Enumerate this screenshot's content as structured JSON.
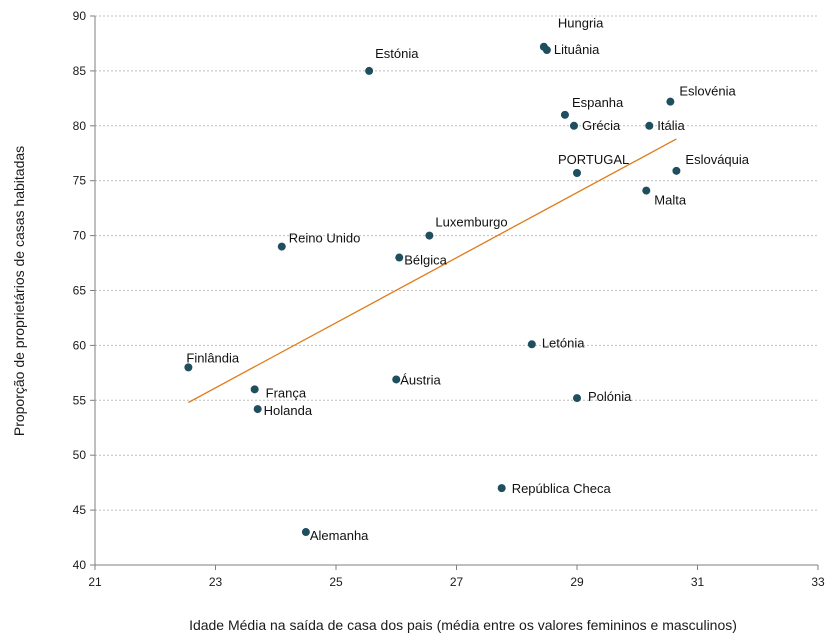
{
  "chart_data": {
    "type": "scatter",
    "xlabel": "Idade Média na saída de casa dos pais (média entre os valores femininos e masculinos)",
    "ylabel": "Proporção de proprietários de casas habitadas",
    "xlim": [
      21,
      33
    ],
    "ylim": [
      40,
      90
    ],
    "xticks": [
      "21",
      "23",
      "25",
      "27",
      "29",
      "31",
      "33"
    ],
    "yticks": [
      "40",
      "45",
      "50",
      "55",
      "60",
      "65",
      "70",
      "75",
      "80",
      "85",
      "90"
    ],
    "grid": {
      "horizontal": true,
      "vertical": false
    },
    "point_color": "#1f4e5f",
    "trendline_color": "#e07b1a",
    "trendline": {
      "x1": 22.55,
      "y1": 54.8,
      "x2": 30.65,
      "y2": 78.8
    },
    "points": [
      {
        "label": "Hungria",
        "x": 28.45,
        "y": 87.2
      },
      {
        "label": "Lituânia",
        "x": 28.5,
        "y": 86.9
      },
      {
        "label": "Estónia",
        "x": 25.55,
        "y": 85.0
      },
      {
        "label": "Eslovénia",
        "x": 30.55,
        "y": 82.2
      },
      {
        "label": "Espanha",
        "x": 28.8,
        "y": 81.0
      },
      {
        "label": "Grécia",
        "x": 28.95,
        "y": 80.0
      },
      {
        "label": "Itália",
        "x": 30.2,
        "y": 80.0
      },
      {
        "label": "PORTUGAL",
        "x": 29.0,
        "y": 75.7
      },
      {
        "label": "Eslováquia",
        "x": 30.65,
        "y": 75.9
      },
      {
        "label": "Malta",
        "x": 30.15,
        "y": 74.1
      },
      {
        "label": "Luxemburgo",
        "x": 26.55,
        "y": 70.0
      },
      {
        "label": "Reino Unido",
        "x": 24.1,
        "y": 69.0
      },
      {
        "label": "Bélgica",
        "x": 26.05,
        "y": 68.0
      },
      {
        "label": "Letónia",
        "x": 28.25,
        "y": 60.1
      },
      {
        "label": "Finlândia",
        "x": 22.55,
        "y": 58.0
      },
      {
        "label": "França",
        "x": 23.65,
        "y": 56.0
      },
      {
        "label": "Áustria",
        "x": 26.0,
        "y": 56.9
      },
      {
        "label": "Polónia",
        "x": 29.0,
        "y": 55.2
      },
      {
        "label": "Holanda",
        "x": 23.7,
        "y": 54.2
      },
      {
        "label": "República Checa",
        "x": 27.75,
        "y": 47.0
      },
      {
        "label": "Alemanha",
        "x": 24.5,
        "y": 43.0
      }
    ]
  }
}
